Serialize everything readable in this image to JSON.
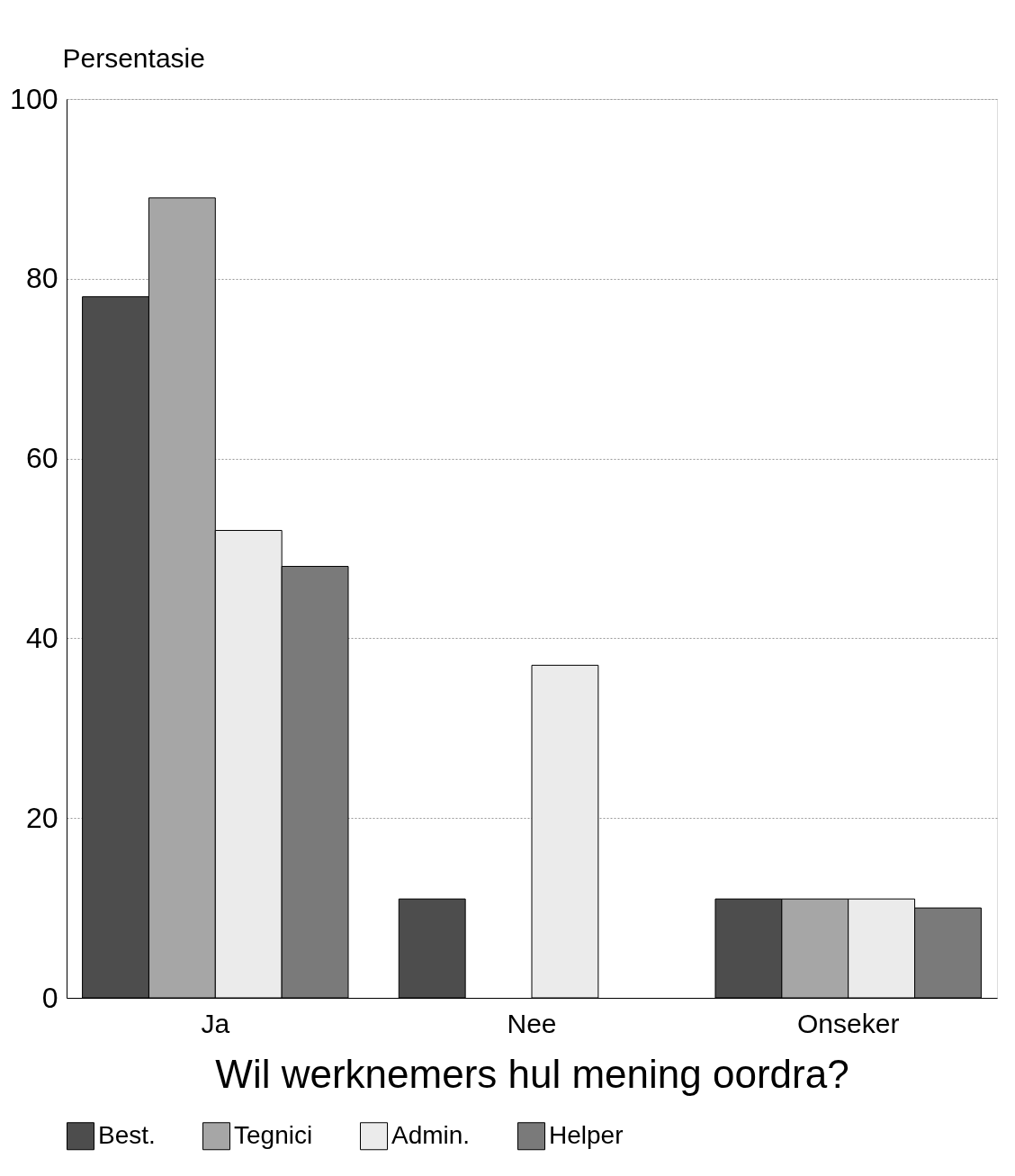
{
  "chart_data": {
    "type": "bar",
    "categories": [
      "Ja",
      "Nee",
      "Onseker"
    ],
    "series": [
      {
        "name": "Best.",
        "color": "#4d4d4d",
        "values": [
          78,
          11,
          11
        ]
      },
      {
        "name": "Tegnici",
        "color": "#a6a6a6",
        "values": [
          89,
          null,
          11
        ]
      },
      {
        "name": "Admin.",
        "color": "#ebebeb",
        "values": [
          52,
          37,
          11
        ]
      },
      {
        "name": "Helper",
        "color": "#7a7a7a",
        "values": [
          48,
          null,
          10
        ]
      }
    ],
    "xlabel": "Wil werknemers hul mening oordra?",
    "ylabel": "Persentasie",
    "ylim": [
      0,
      100
    ],
    "yticks": [
      0,
      20,
      40,
      60,
      80,
      100
    ],
    "grid": "y",
    "legend": "bottom"
  }
}
